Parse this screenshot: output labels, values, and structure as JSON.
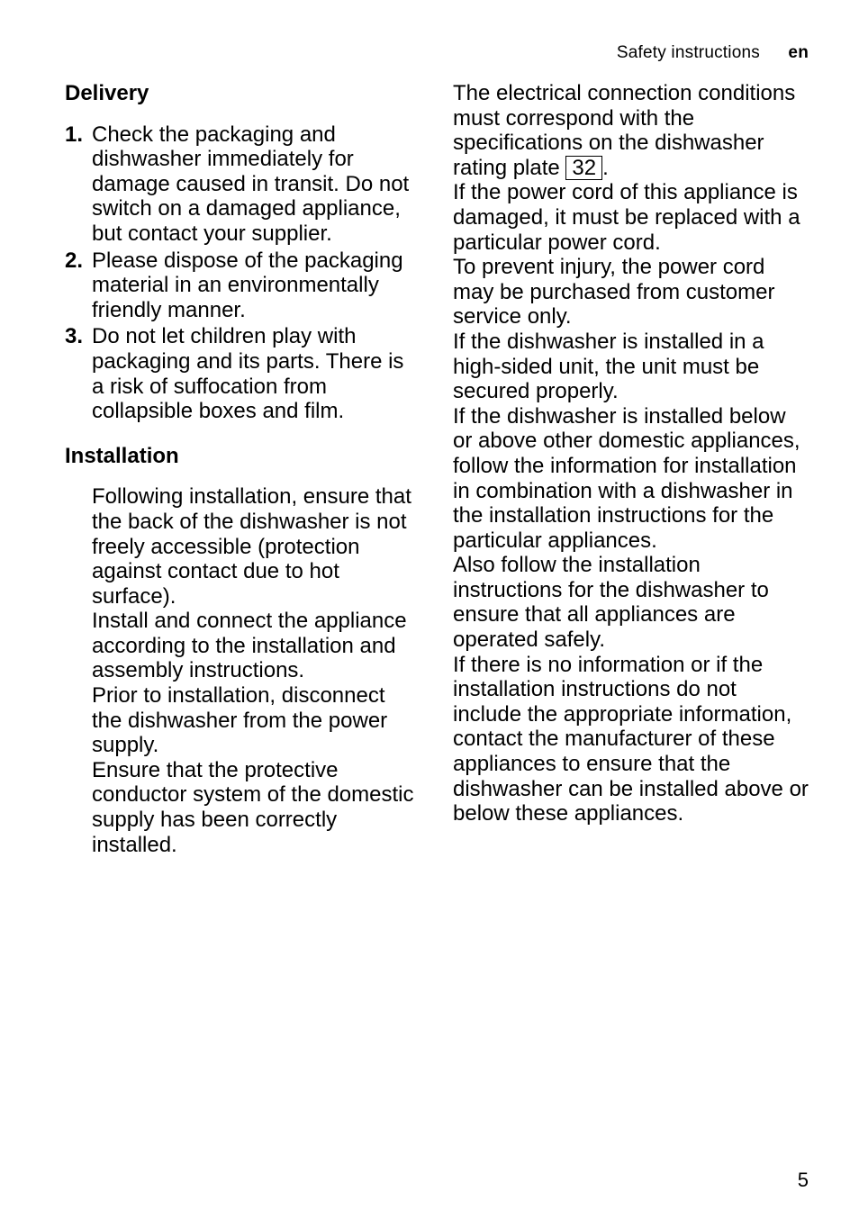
{
  "header": {
    "section_label": "Safety instructions",
    "lang_code": "en"
  },
  "left": {
    "delivery_heading": "Delivery",
    "delivery_items": [
      {
        "num": "1.",
        "text": "Check the packaging and dishwasher immediately for damage caused in transit. Do not switch on a damaged appliance, but contact your supplier."
      },
      {
        "num": "2.",
        "text": "Please dispose of the packaging material in an environmentally friendly manner."
      },
      {
        "num": "3.",
        "text": "Do not let children play with packaging and its parts. There is a risk of suffocation from collapsible boxes and film."
      }
    ],
    "installation_heading": "Installation",
    "installation_paras": [
      "Following installation, ensure that the back of the dishwasher is not freely accessible (protection against contact due to hot surface).",
      "Install and connect the appliance according to the installation and assembly instructions.",
      "Prior to installation, disconnect the dishwasher from the power supply.",
      "Ensure that the protective conductor system of the domestic supply has been correctly installed."
    ]
  },
  "right": {
    "para1_pre": "The electrical connection conditions must correspond with the specifications on the dishwasher rating plate ",
    "para1_box": "32",
    "para1_post": ".",
    "paras": [
      "If the power cord of this appliance is damaged, it must be replaced with a particular power cord.",
      "To prevent injury, the power cord may be purchased from customer service only.",
      "If the dishwasher is installed in a high-sided unit, the unit must be secured properly.",
      "If the dishwasher is installed below or above other domestic appliances, follow the information for installation in combination with a dishwasher in the installation instructions for the particular appliances.",
      "Also follow the installation instructions for the dishwasher to ensure that all appliances are operated safely.",
      "If there is no information or if the installation instructions do not include the appropriate information, contact the manufacturer of these appliances to ensure that the dishwasher can be installed above or below these appliances."
    ]
  },
  "page_number": "5"
}
